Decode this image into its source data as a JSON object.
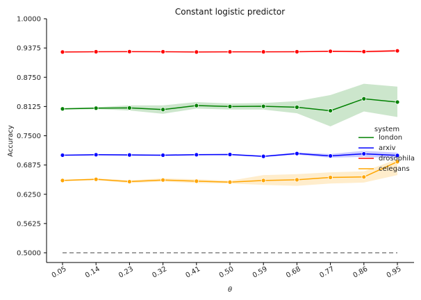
{
  "chart_data": {
    "type": "line",
    "title": "Constant logistic predictor",
    "xlabel": "θ",
    "ylabel": "Accuracy",
    "x": [
      "0.05",
      "0.14",
      "0.23",
      "0.32",
      "0.41",
      "0.50",
      "0.59",
      "0.68",
      "0.77",
      "0.86",
      "0.95"
    ],
    "yticks": [
      "0.5000",
      "0.5625",
      "0.6250",
      "0.6875",
      "0.7500",
      "0.8125",
      "0.8750",
      "0.9375",
      "1.0000"
    ],
    "ylim": [
      0.5,
      1.0
    ],
    "grid": false,
    "legend": {
      "title": "system",
      "placement": "right"
    },
    "baseline": {
      "value": 0.5,
      "color": "#808080",
      "style": "dashed"
    },
    "series": [
      {
        "name": "london",
        "color": "#008000",
        "values": [
          0.8075,
          0.809,
          0.8095,
          0.806,
          0.8145,
          0.8125,
          0.813,
          0.811,
          0.8035,
          0.829,
          0.822
        ],
        "ci_lower": [
          0.806,
          0.807,
          0.804,
          0.797,
          0.808,
          0.806,
          0.806,
          0.798,
          0.77,
          0.802,
          0.79
        ],
        "ci_upper": [
          0.809,
          0.811,
          0.815,
          0.815,
          0.822,
          0.819,
          0.82,
          0.824,
          0.837,
          0.861,
          0.855
        ]
      },
      {
        "name": "arxiv",
        "color": "#0000ff",
        "values": [
          0.7085,
          0.7095,
          0.709,
          0.7085,
          0.7095,
          0.71,
          0.706,
          0.712,
          0.707,
          0.7115,
          0.708
        ],
        "ci_lower": [
          0.7075,
          0.708,
          0.7075,
          0.707,
          0.708,
          0.7085,
          0.7045,
          0.7095,
          0.703,
          0.705,
          0.702
        ],
        "ci_upper": [
          0.7095,
          0.711,
          0.7105,
          0.71,
          0.711,
          0.7115,
          0.7075,
          0.7145,
          0.711,
          0.718,
          0.714
        ]
      },
      {
        "name": "drosophila",
        "color": "#ff0000",
        "values": [
          0.929,
          0.9295,
          0.9298,
          0.9295,
          0.929,
          0.9293,
          0.9293,
          0.9295,
          0.9305,
          0.9298,
          0.9315
        ],
        "ci_lower": [
          0.9282,
          0.9287,
          0.929,
          0.9287,
          0.9282,
          0.9285,
          0.9285,
          0.9285,
          0.929,
          0.928,
          0.929
        ],
        "ci_upper": [
          0.9298,
          0.9303,
          0.9306,
          0.9303,
          0.9298,
          0.9301,
          0.9301,
          0.9305,
          0.932,
          0.9316,
          0.934
        ]
      },
      {
        "name": "celegans",
        "color": "#ffa500",
        "values": [
          0.6545,
          0.657,
          0.652,
          0.6555,
          0.653,
          0.651,
          0.6545,
          0.656,
          0.661,
          0.662,
          0.6945
        ],
        "ci_lower": [
          0.653,
          0.655,
          0.649,
          0.652,
          0.649,
          0.648,
          0.645,
          0.643,
          0.648,
          0.65,
          0.666
        ],
        "ci_upper": [
          0.656,
          0.659,
          0.655,
          0.659,
          0.657,
          0.654,
          0.666,
          0.668,
          0.672,
          0.674,
          0.7
        ]
      }
    ]
  }
}
